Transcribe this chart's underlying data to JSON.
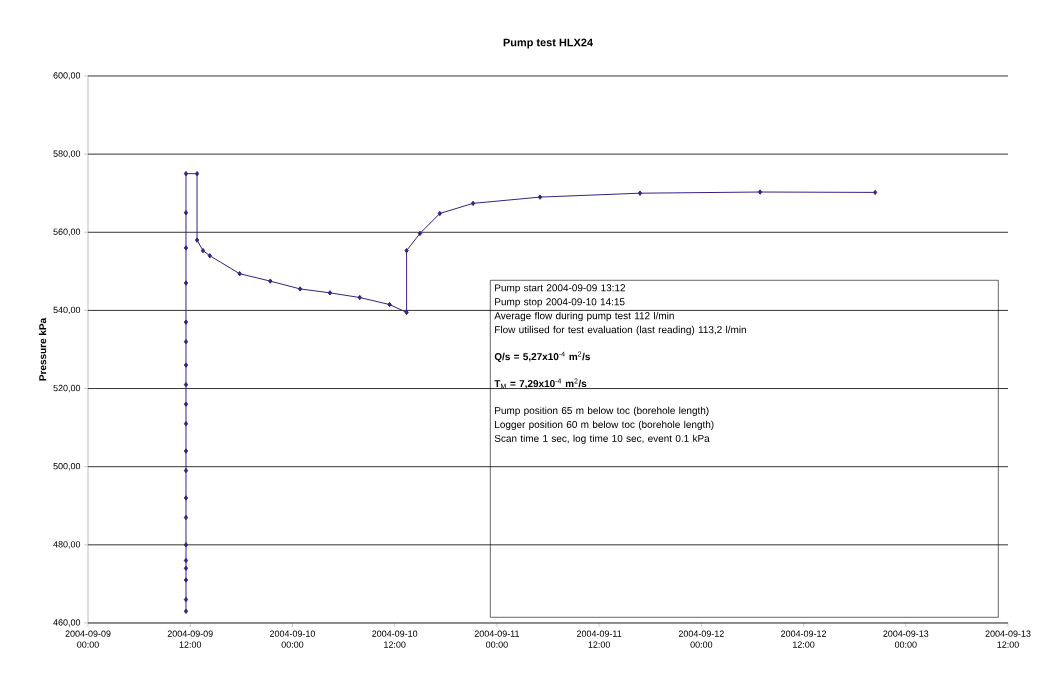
{
  "chart_data": {
    "type": "line",
    "title": "Pump test HLX24",
    "ylabel": "Pressure kPa",
    "series": [
      {
        "color": "#3a2080",
        "marker": "diamond",
        "x": [
          "2004-09-09T11:30",
          "2004-09-09T11:30",
          "2004-09-09T11:30",
          "2004-09-09T11:30",
          "2004-09-09T11:30",
          "2004-09-09T11:30",
          "2004-09-09T11:30",
          "2004-09-09T11:30",
          "2004-09-09T11:30",
          "2004-09-09T11:30",
          "2004-09-09T11:30",
          "2004-09-09T11:30",
          "2004-09-09T11:30",
          "2004-09-09T11:30",
          "2004-09-09T11:30",
          "2004-09-09T11:30",
          "2004-09-09T11:30",
          "2004-09-09T11:30",
          "2004-09-09T11:30",
          "2004-09-09T11:30",
          "2004-09-09T12:48",
          "2004-09-09T12:48",
          "2004-09-09T13:30",
          "2004-09-09T14:18",
          "2004-09-09T17:48",
          "2004-09-09T21:24",
          "2004-09-10T00:54",
          "2004-09-10T04:24",
          "2004-09-10T07:54",
          "2004-09-10T11:24",
          "2004-09-10T13:24",
          "2004-09-10T13:24",
          "2004-09-10T14:58",
          "2004-09-10T17:18",
          "2004-09-10T21:12",
          "2004-09-11T05:04",
          "2004-09-11T16:48",
          "2004-09-12T06:54",
          "2004-09-12T20:24"
        ],
        "values": [
          463,
          466,
          471,
          474,
          476,
          480,
          487,
          492,
          499,
          504,
          511,
          516,
          521,
          526,
          532,
          537,
          547,
          556,
          565,
          575,
          575,
          558,
          555.3,
          554,
          549.4,
          547.5,
          545.5,
          544.5,
          543.3,
          541.5,
          539.5,
          555.3,
          559.7,
          564.8,
          567.4,
          569,
          570,
          570.3,
          570.2
        ]
      }
    ],
    "xlim": [
      "2004-09-09T00:00",
      "2004-09-13T12:00"
    ],
    "xticks": [
      {
        "value": "2004-09-09T00:00",
        "label": "2004-09-09 00:00"
      },
      {
        "value": "2004-09-09T12:00",
        "label": "2004-09-09 12:00"
      },
      {
        "value": "2004-09-10T00:00",
        "label": "2004-09-10 00:00"
      },
      {
        "value": "2004-09-10T12:00",
        "label": "2004-09-10 12:00"
      },
      {
        "value": "2004-09-11T00:00",
        "label": "2004-09-11 00:00"
      },
      {
        "value": "2004-09-11T12:00",
        "label": "2004-09-11 12:00"
      },
      {
        "value": "2004-09-12T00:00",
        "label": "2004-09-12 00:00"
      },
      {
        "value": "2004-09-12T12:00",
        "label": "2004-09-12 12:00"
      },
      {
        "value": "2004-09-13T00:00",
        "label": "2004-09-13 00:00"
      },
      {
        "value": "2004-09-13T12:00",
        "label": "2004-09-13 12:00"
      }
    ],
    "ylim": [
      460,
      600
    ],
    "yticks": [
      {
        "value": 460,
        "label": "460,00"
      },
      {
        "value": 480,
        "label": "480,00"
      },
      {
        "value": 500,
        "label": "500,00"
      },
      {
        "value": 520,
        "label": "520,00"
      },
      {
        "value": 540,
        "label": "540,00"
      },
      {
        "value": 560,
        "label": "560,00"
      },
      {
        "value": 580,
        "label": "580,00"
      },
      {
        "value": 600,
        "label": "600,00"
      }
    ],
    "grid": "y",
    "annotations": [
      "Pump start 2004-09-09 13:12",
      "Pump stop 2004-09-10  14:15",
      "Average flow during pump test 112 l/min",
      "Flow utilised for test evaluation (last reading) 113,2 l/min",
      "**Q/s = 5,27x10**$^{-4}$ **m**$^{2}$**/s**",
      "**T**$_{M}$ **= 7,29x10**$^{-4}$ **m**$^{2}$**/s**",
      "Pump position 65 m below toc (borehole length)",
      "Logger position 60 m below toc (borehole length)",
      "Scan time 1 sec, log time 10 sec, event 0.1 kPa"
    ]
  }
}
